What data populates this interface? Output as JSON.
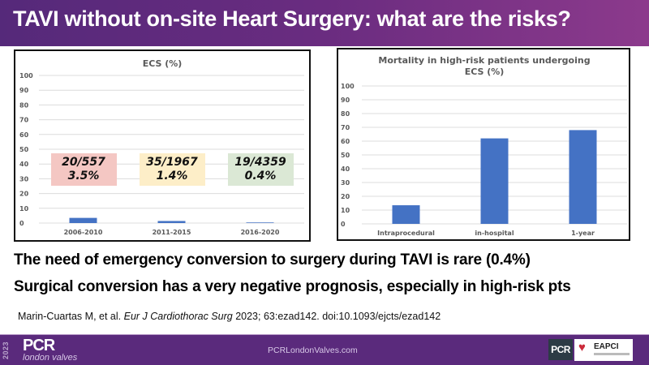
{
  "header": {
    "title": "TAVI without on-site Heart Surgery: what are the risks?"
  },
  "chart_data": [
    {
      "type": "bar",
      "title": "ECS (%)",
      "categories": [
        "2006-2010",
        "2011-2015",
        "2016-2020"
      ],
      "values": [
        3.5,
        1.4,
        0.4
      ],
      "yticks": [
        "0",
        "10",
        "20",
        "30",
        "40",
        "50",
        "60",
        "70",
        "80",
        "90",
        "100"
      ],
      "ylim": [
        0,
        100
      ],
      "xlabel": "",
      "ylabel": "",
      "grid": true,
      "bar_color": "#4472c4",
      "annotations": [
        {
          "fraction": "20/557",
          "percent": "3.5%",
          "color": "#f4c7c3"
        },
        {
          "fraction": "35/1967",
          "percent": "1.4%",
          "color": "#fdeec8"
        },
        {
          "fraction": "19/4359",
          "percent": "0.4%",
          "color": "#dbe8d5"
        }
      ]
    },
    {
      "type": "bar",
      "title_line1": "Mortality in high-risk patients undergoing",
      "title_line2": "ECS (%)",
      "categories": [
        "Intraprocedural",
        "in-hospital",
        "1-year"
      ],
      "values": [
        13.5,
        62,
        68
      ],
      "yticks": [
        "0",
        "10",
        "20",
        "30",
        "40",
        "50",
        "60",
        "70",
        "80",
        "90",
        "100"
      ],
      "ylim": [
        0,
        100
      ],
      "xlabel": "",
      "ylabel": "",
      "grid": true,
      "bar_color": "#4472c4"
    }
  ],
  "statements": [
    "The need of emergency conversion to surgery during TAVI is rare  (0.4%)",
    "Surgical conversion has a very negative prognosis, especially in high-risk pts"
  ],
  "citation": {
    "authors": "Marin-Cuartas M, et al.",
    "journal": "Eur J Cardiothorac Surg",
    "details": " 2023; 63:ezad142. doi:10.1093/ejcts/ezad142"
  },
  "footer": {
    "year": "2023",
    "logo_main": "PCR",
    "logo_sub": "london valves",
    "url": "PCRLondonValves.com",
    "pcr_badge": "PCR",
    "eapci_label": "EAPCI",
    "eapci_icon": "heart-icon"
  }
}
